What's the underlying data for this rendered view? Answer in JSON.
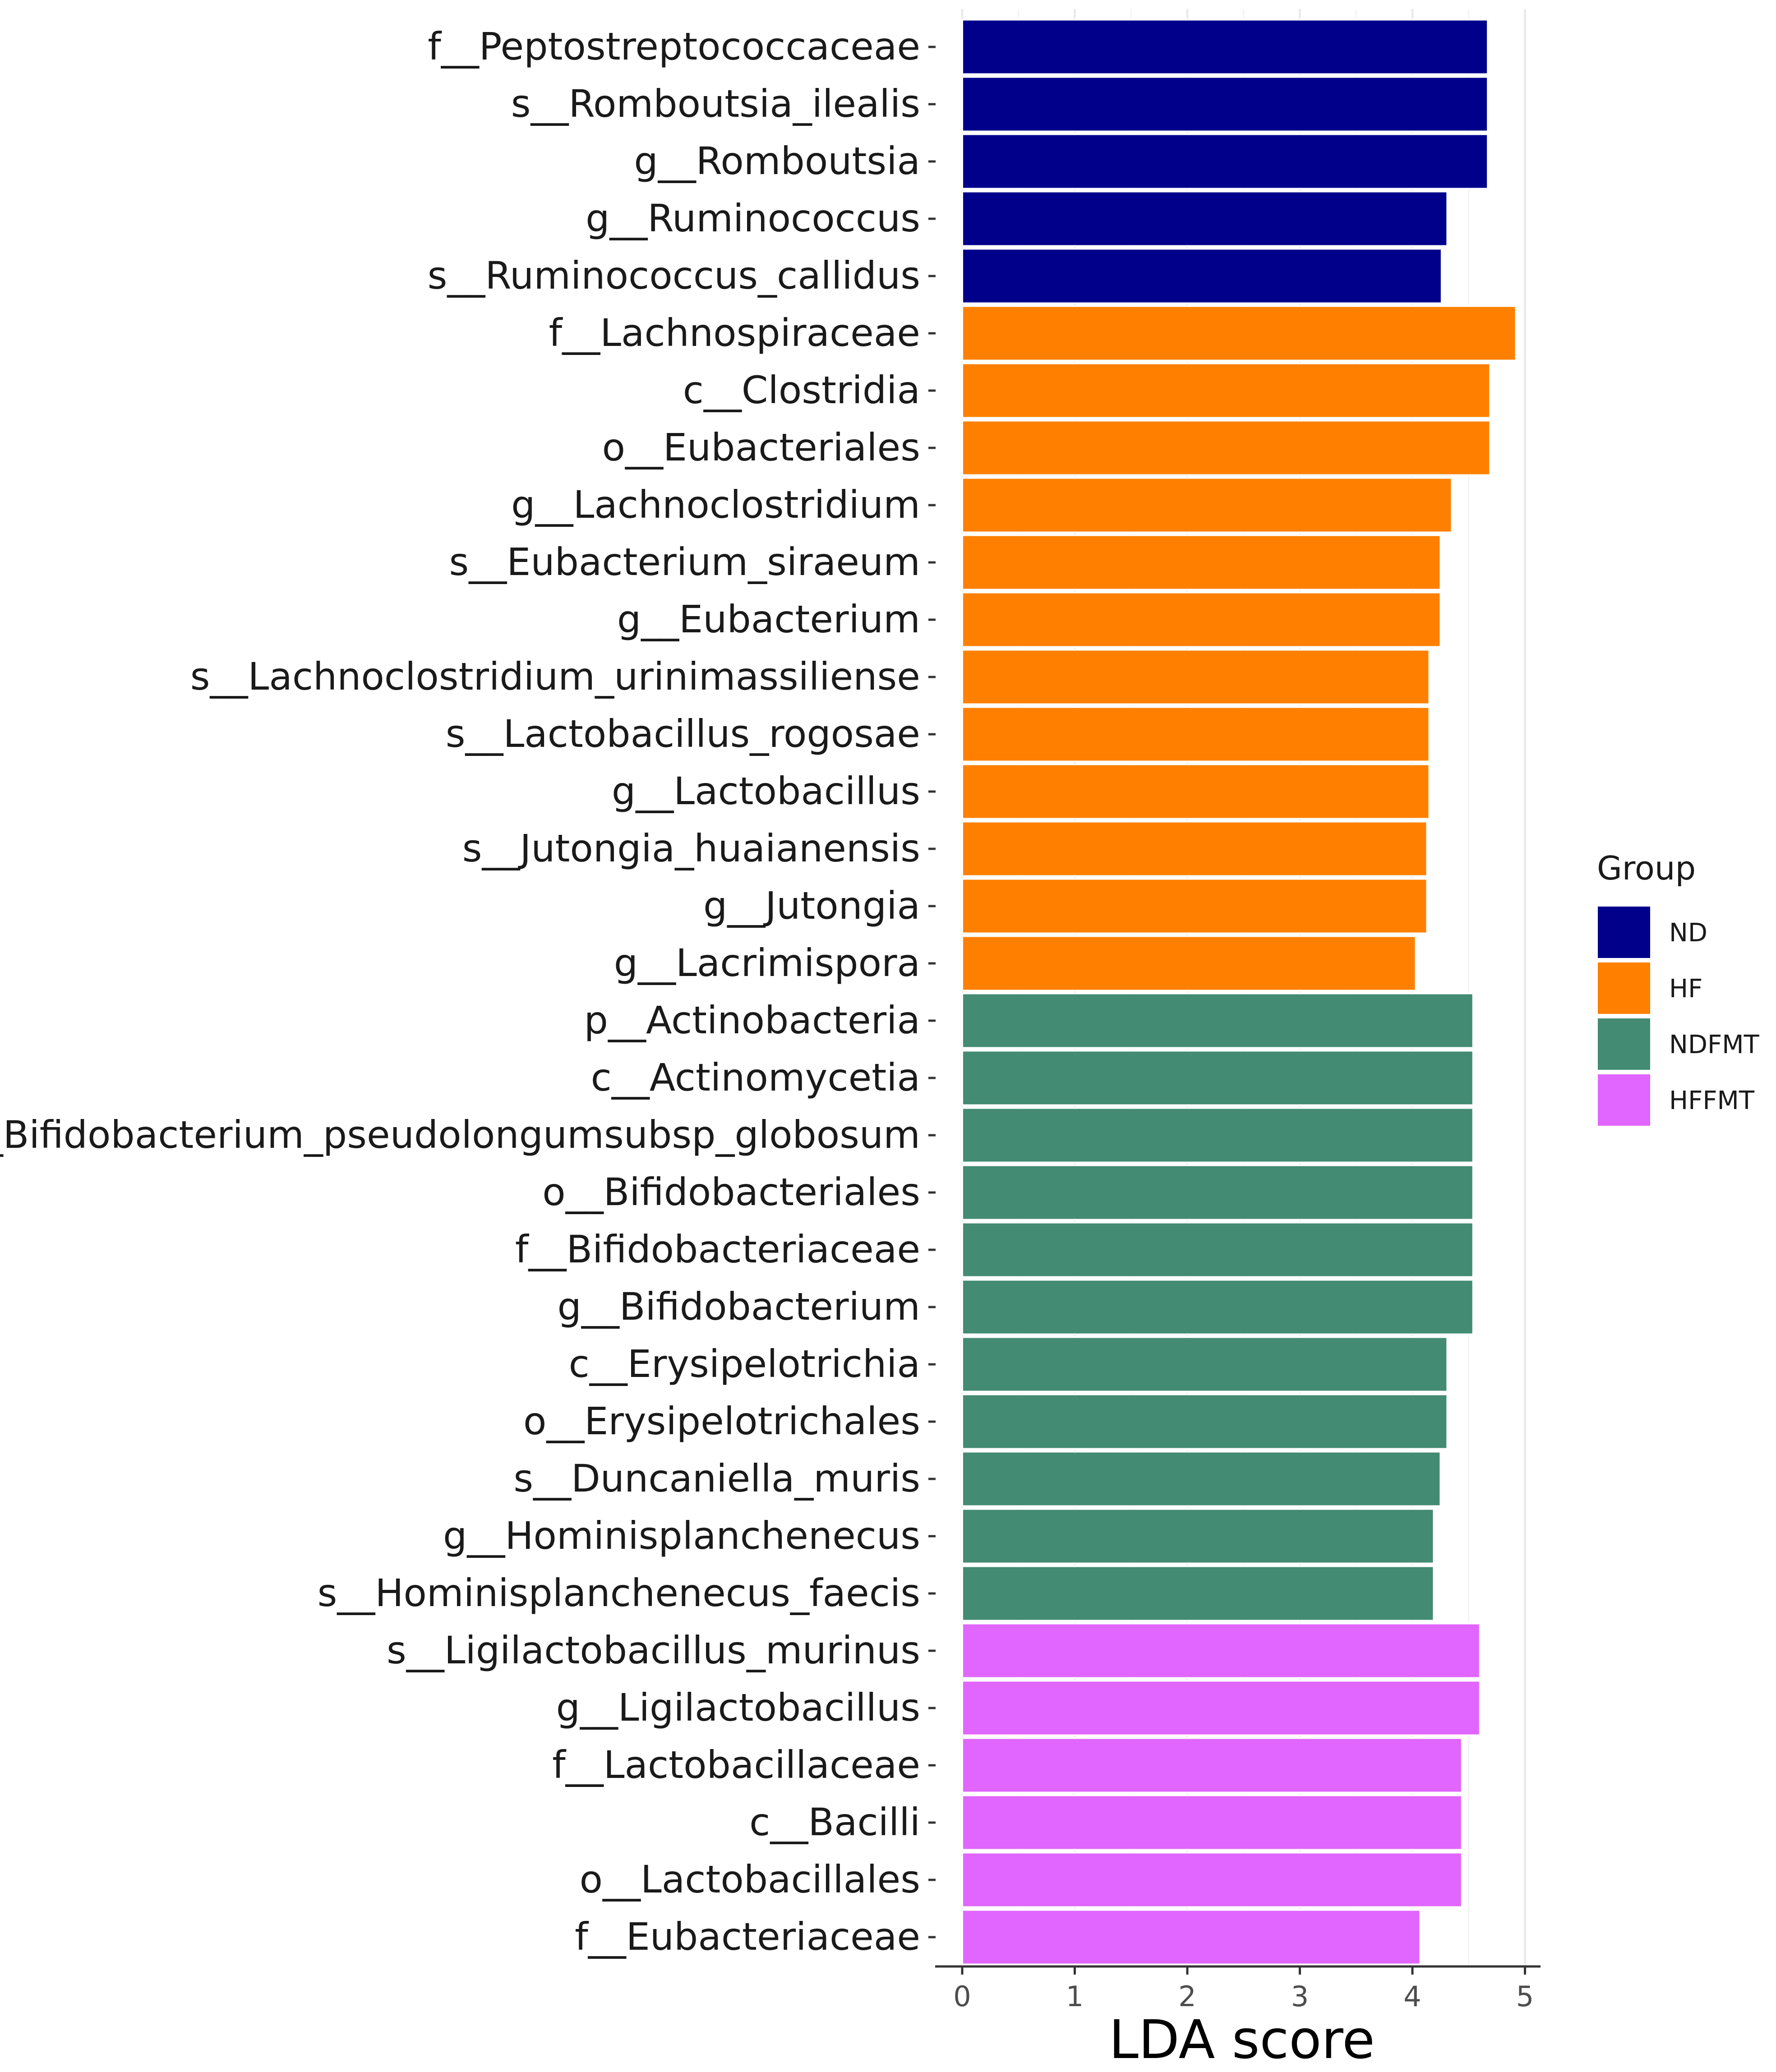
{
  "chart_data": {
    "type": "bar",
    "orientation": "horizontal",
    "title": "",
    "xlabel": "LDA score",
    "ylabel": "",
    "xlim": [
      0,
      5
    ],
    "xticks": [
      "0",
      "1",
      "2",
      "3",
      "4",
      "5"
    ],
    "grid": true,
    "legend_position": "right",
    "legend_title": "Group",
    "groups": [
      {
        "name": "ND",
        "color": "#00008b"
      },
      {
        "name": "HF",
        "color": "#ff8000"
      },
      {
        "name": "NDFMT",
        "color": "#438b73"
      },
      {
        "name": "HFFMT",
        "color": "#e066ff"
      }
    ],
    "bars": [
      {
        "label": "f__Peptostreptococcaceae",
        "value": 4.67,
        "group": "ND"
      },
      {
        "label": "s__Romboutsia_ilealis",
        "value": 4.67,
        "group": "ND"
      },
      {
        "label": "g__Romboutsia",
        "value": 4.67,
        "group": "ND"
      },
      {
        "label": "g__Ruminococcus",
        "value": 4.31,
        "group": "ND"
      },
      {
        "label": "s__Ruminococcus_callidus",
        "value": 4.26,
        "group": "ND"
      },
      {
        "label": "f__Lachnospiraceae",
        "value": 4.92,
        "group": "HF"
      },
      {
        "label": "c__Clostridia",
        "value": 4.69,
        "group": "HF"
      },
      {
        "label": "o__Eubacteriales",
        "value": 4.69,
        "group": "HF"
      },
      {
        "label": "g__Lachnoclostridium",
        "value": 4.35,
        "group": "HF"
      },
      {
        "label": "s__Eubacterium_siraeum",
        "value": 4.25,
        "group": "HF"
      },
      {
        "label": "g__Eubacterium",
        "value": 4.25,
        "group": "HF"
      },
      {
        "label": "s__Lachnoclostridium_urinimassiliense",
        "value": 4.15,
        "group": "HF"
      },
      {
        "label": "s__Lactobacillus_rogosae",
        "value": 4.15,
        "group": "HF"
      },
      {
        "label": "g__Lactobacillus",
        "value": 4.15,
        "group": "HF"
      },
      {
        "label": "s__Jutongia_huaianensis",
        "value": 4.13,
        "group": "HF"
      },
      {
        "label": "g__Jutongia",
        "value": 4.13,
        "group": "HF"
      },
      {
        "label": "g__Lacrimispora",
        "value": 4.03,
        "group": "HF"
      },
      {
        "label": "p__Actinobacteria",
        "value": 4.54,
        "group": "NDFMT"
      },
      {
        "label": "c__Actinomycetia",
        "value": 4.54,
        "group": "NDFMT"
      },
      {
        "label": "s__Bifidobacterium_pseudolongumsubsp_globosum",
        "value": 4.54,
        "group": "NDFMT"
      },
      {
        "label": "o__Bifidobacteriales",
        "value": 4.54,
        "group": "NDFMT"
      },
      {
        "label": "f__Bifidobacteriaceae",
        "value": 4.54,
        "group": "NDFMT"
      },
      {
        "label": "g__Bifidobacterium",
        "value": 4.54,
        "group": "NDFMT"
      },
      {
        "label": "c__Erysipelotrichia",
        "value": 4.31,
        "group": "NDFMT"
      },
      {
        "label": "o__Erysipelotrichales",
        "value": 4.31,
        "group": "NDFMT"
      },
      {
        "label": "s__Duncaniella_muris",
        "value": 4.25,
        "group": "NDFMT"
      },
      {
        "label": "g__Hominisplanchenecus",
        "value": 4.19,
        "group": "NDFMT"
      },
      {
        "label": "s__Hominisplanchenecus_faecis",
        "value": 4.19,
        "group": "NDFMT"
      },
      {
        "label": "s__Ligilactobacillus_murinus",
        "value": 4.6,
        "group": "HFFMT"
      },
      {
        "label": "g__Ligilactobacillus",
        "value": 4.6,
        "group": "HFFMT"
      },
      {
        "label": "f__Lactobacillaceae",
        "value": 4.44,
        "group": "HFFMT"
      },
      {
        "label": "c__Bacilli",
        "value": 4.44,
        "group": "HFFMT"
      },
      {
        "label": "o__Lactobacillales",
        "value": 4.44,
        "group": "HFFMT"
      },
      {
        "label": "f__Eubacteriaceae",
        "value": 4.07,
        "group": "HFFMT"
      }
    ]
  }
}
